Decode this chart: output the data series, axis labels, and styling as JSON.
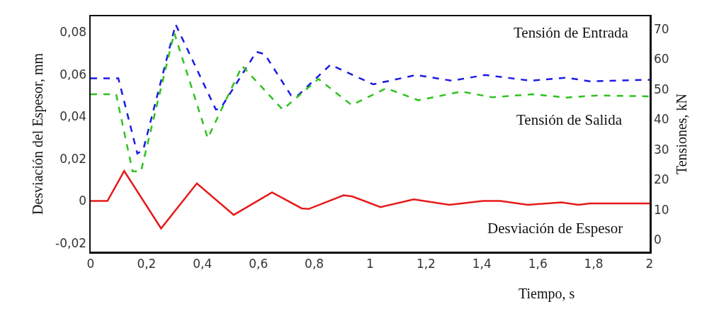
{
  "chart_data": {
    "type": "line",
    "xlabel": "Tiempo, s",
    "ylabel": "Desviación del Espesor, mm",
    "y2label": "Tensiones, kN",
    "xlim": [
      0,
      2
    ],
    "xticks": [
      0,
      {
        "value": 0.2,
        "label": "0,2"
      },
      {
        "value": 0.4,
        "label": "0,4"
      },
      {
        "value": 0.6,
        "label": "0,6"
      },
      {
        "value": 0.8,
        "label": "0,8"
      },
      1,
      {
        "value": 1.2,
        "label": "1,2"
      },
      {
        "value": 1.4,
        "label": "1,4"
      },
      {
        "value": 1.6,
        "label": "1,6"
      },
      {
        "value": 1.8,
        "label": "1,8"
      },
      2
    ],
    "ylim": [
      -0.024,
      0.0875
    ],
    "yticks": [
      {
        "value": -0.02,
        "label": "-0,02"
      },
      0,
      {
        "value": 0.02,
        "label": "0,02"
      },
      {
        "value": 0.04,
        "label": "0,04"
      },
      {
        "value": 0.06,
        "label": "0,06"
      },
      {
        "value": 0.08,
        "label": "0,08"
      }
    ],
    "y2lim": [
      -4,
      74.2
    ],
    "y2ticks": [
      0,
      10,
      20,
      30,
      40,
      50,
      60,
      70
    ],
    "grid": false,
    "legend": false,
    "marker": "none",
    "series": [
      {
        "name": "Tensión de Entrada",
        "color": "#1a1ae6",
        "axis": "y2",
        "line_style": "dashed",
        "x": [
          0,
          0.099,
          0.167,
          0.188,
          0.304,
          0.448,
          0.465,
          0.593,
          0.623,
          0.717,
          0.738,
          0.858,
          1.011,
          1.165,
          1.292,
          1.412,
          1.574,
          1.702,
          1.787,
          2.0
        ],
        "values": [
          53.6,
          53.6,
          28.6,
          29.8,
          71.5,
          43.2,
          43.6,
          62.4,
          61.6,
          47.9,
          47.6,
          58.1,
          51.6,
          54.7,
          52.8,
          54.7,
          52.8,
          53.8,
          52.6,
          53.1
        ]
      },
      {
        "name": "Tensión de Salida",
        "color": "#2ec21e",
        "axis": "y2",
        "line_style": "dashed",
        "x": [
          0,
          0.091,
          0.15,
          0.18,
          0.299,
          0.419,
          0.542,
          0.687,
          0.815,
          0.934,
          1.058,
          1.173,
          1.327,
          1.437,
          1.582,
          1.702,
          1.812,
          2.0
        ],
        "values": [
          48.3,
          48.3,
          22.7,
          22.7,
          68.7,
          33.7,
          57.7,
          43.2,
          53.4,
          44.7,
          50.3,
          46.3,
          49.2,
          47.3,
          48.3,
          47.2,
          47.9,
          47.6
        ]
      },
      {
        "name": "Desviación de Espesor",
        "color": "#e61a1a",
        "axis": "y",
        "line_style": "solid",
        "x": [
          0,
          0.06,
          0.12,
          0.252,
          0.38,
          0.512,
          0.649,
          0.755,
          0.78,
          0.905,
          0.935,
          1.037,
          1.156,
          1.284,
          1.403,
          1.466,
          1.565,
          1.685,
          1.745,
          1.787,
          2.0
        ],
        "values": [
          0,
          0,
          0.0142,
          -0.013,
          0.0083,
          -0.0066,
          0.0041,
          -0.0035,
          -0.0038,
          0.0027,
          0.0022,
          -0.0029,
          0.0008,
          -0.0018,
          0,
          0,
          -0.0018,
          -0.0007,
          -0.0018,
          -0.0012,
          -0.0012
        ]
      }
    ]
  }
}
